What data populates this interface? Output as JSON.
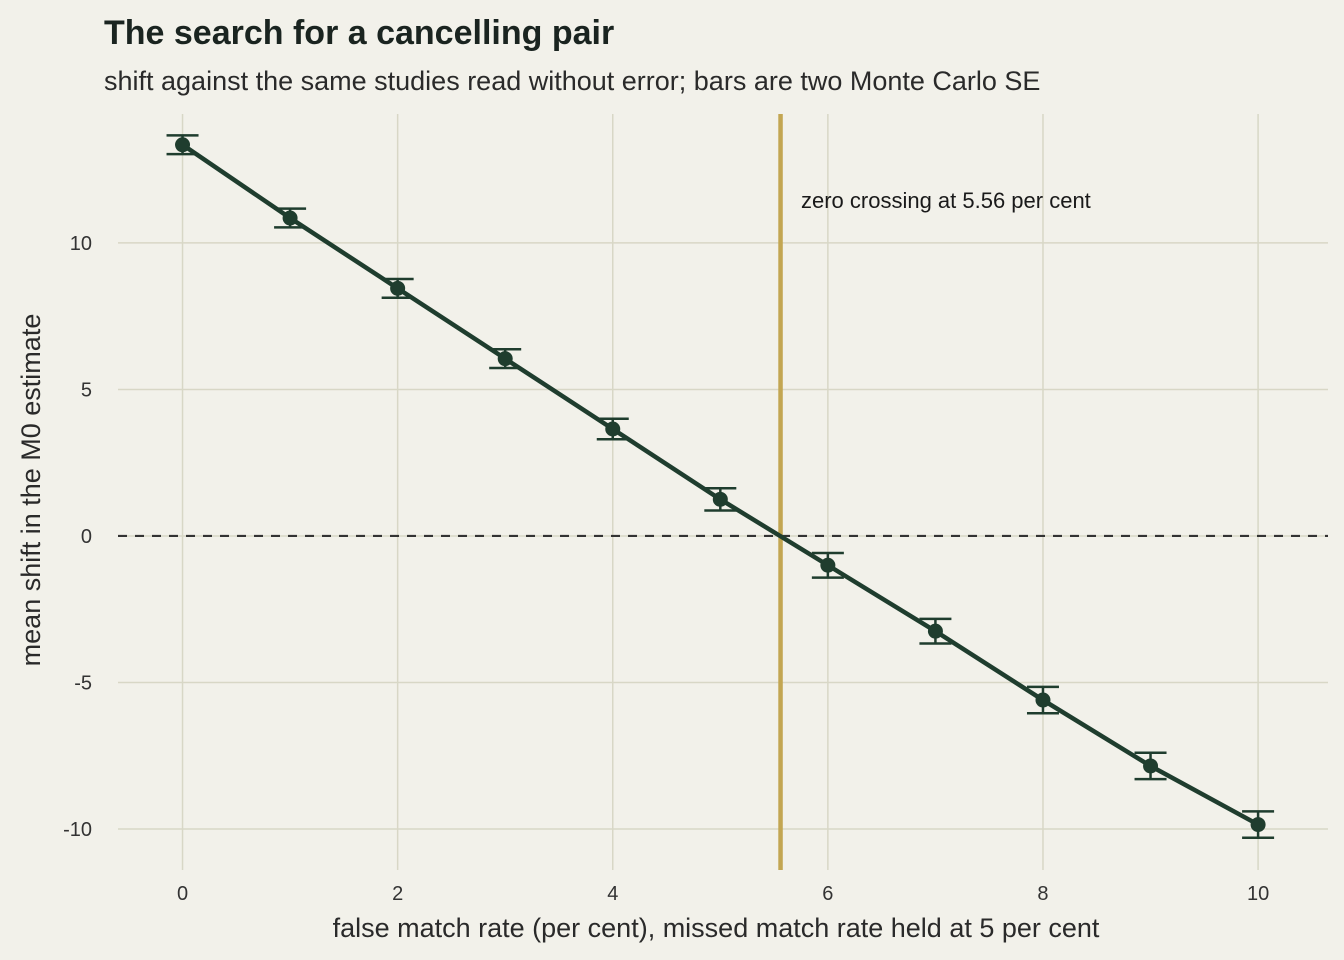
{
  "chart_data": {
    "type": "line",
    "title": "The search for a cancelling pair",
    "subtitle": "shift against the same studies read without error; bars are two Monte Carlo SE",
    "xlabel": "false match rate (per cent), missed match rate held at 5 per cent",
    "ylabel": "mean shift in the M0 estimate",
    "xlim": [
      -0.6,
      10.65
    ],
    "ylim": [
      -11.4,
      14.4
    ],
    "x_ticks": [
      0,
      2,
      4,
      6,
      8,
      10
    ],
    "y_ticks": [
      -10,
      -5,
      0,
      5,
      10
    ],
    "y_tick_labels": [
      "-10",
      "-5",
      "0",
      "5",
      "10"
    ],
    "grid": true,
    "series": [
      {
        "x": [
          0,
          1,
          2,
          3,
          4,
          5,
          6,
          7,
          8,
          9,
          10
        ],
        "y": [
          13.35,
          10.85,
          8.45,
          6.05,
          3.65,
          1.25,
          -1.0,
          -3.25,
          -5.6,
          -7.85,
          -9.85
        ],
        "error_2se": [
          0.32,
          0.32,
          0.32,
          0.32,
          0.35,
          0.38,
          0.42,
          0.42,
          0.45,
          0.45,
          0.45
        ]
      }
    ],
    "reference_lines": {
      "horizontal_y": 0,
      "vertical_x": 5.56
    },
    "annotation": {
      "text": "zero crossing at 5.56 per cent",
      "x": 5.75,
      "y": 11.2
    },
    "colors": {
      "background": "#f2f1ea",
      "grid": "#d8d7c6",
      "series": "#1f3d2e",
      "vertical_line": "#c3a652",
      "zero_line": "#333333"
    }
  }
}
